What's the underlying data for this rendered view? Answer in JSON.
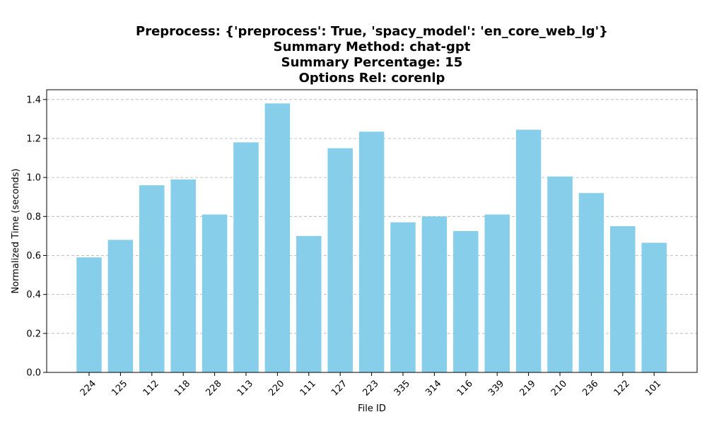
{
  "chart_data": {
    "type": "bar",
    "title_lines": [
      "Preprocess: {'preprocess': True, 'spacy_model': 'en_core_web_lg'}",
      "Summary Method: chat-gpt",
      "Summary Percentage: 15",
      "Options Rel: corenlp"
    ],
    "xlabel": "File ID",
    "ylabel": "Normalized Time (seconds)",
    "categories": [
      "224",
      "125",
      "112",
      "118",
      "228",
      "113",
      "220",
      "111",
      "127",
      "223",
      "335",
      "314",
      "116",
      "339",
      "219",
      "210",
      "236",
      "122",
      "101"
    ],
    "values": [
      0.59,
      0.68,
      0.96,
      0.99,
      0.81,
      1.18,
      1.38,
      0.7,
      1.15,
      1.235,
      0.77,
      0.8,
      0.725,
      0.81,
      1.245,
      1.005,
      0.92,
      0.75,
      0.665
    ],
    "ylim": [
      0,
      1.45
    ],
    "yticks": [
      "0.0",
      "0.2",
      "0.4",
      "0.6",
      "0.8",
      "1.0",
      "1.2",
      "1.4"
    ],
    "grid": "y-dashed",
    "bar_color": "#87CEEB"
  }
}
